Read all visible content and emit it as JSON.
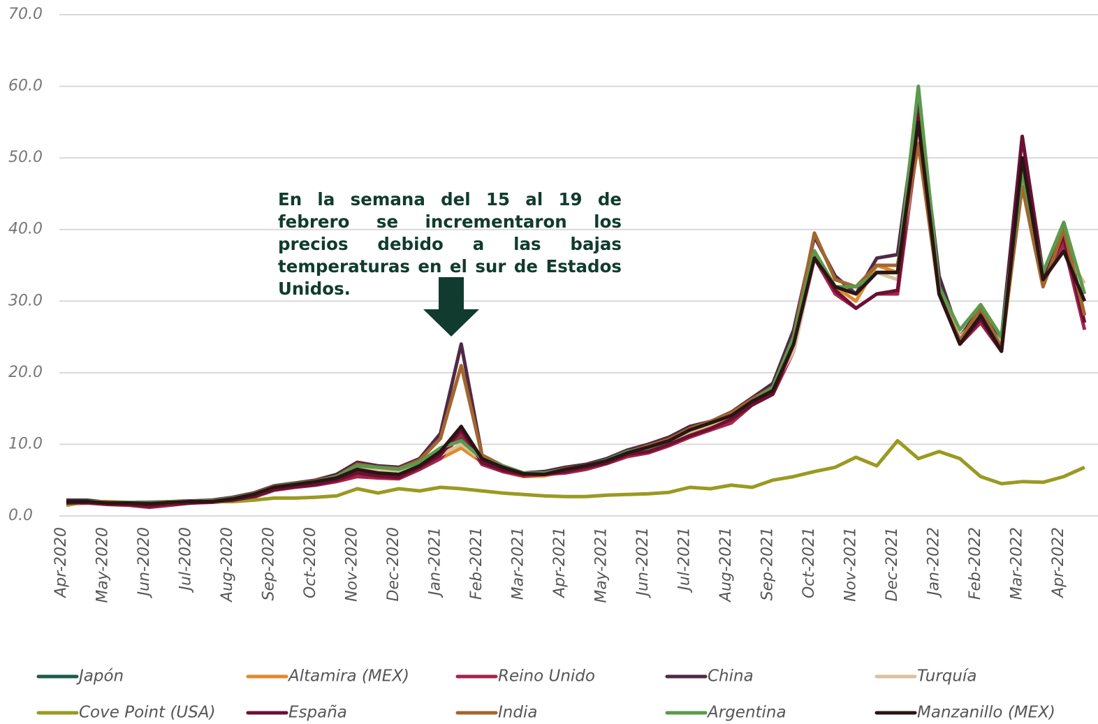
{
  "chart_data": {
    "type": "line",
    "annotation": "En la semana del 15 al 19 de febrero se incrementaron los precios debido a las bajas temperaturas en el sur de Estados Unidos.",
    "categories": [
      "Apr-2020",
      null,
      "May-2020",
      null,
      "Jun-2020",
      null,
      "Jul-2020",
      null,
      "Aug-2020",
      null,
      "Sep-2020",
      null,
      "Oct-2020",
      null,
      "Nov-2020",
      null,
      "Dec-2020",
      null,
      "Jan-2021",
      null,
      "Feb-2021",
      null,
      "Mar-2021",
      null,
      "Apr-2021",
      null,
      "May-2021",
      null,
      "Jun-2021",
      null,
      "Jul-2021",
      null,
      "Aug-2021",
      null,
      "Sep-2021",
      null,
      "Oct-2021",
      null,
      "Nov-2021",
      null,
      "Dec-2021",
      null,
      "Jan-2022",
      null,
      "Feb-2022",
      null,
      "Mar-2022",
      null,
      "Apr-2022",
      null
    ],
    "ylim": [
      0,
      70
    ],
    "yticks": [
      {
        "value": 0,
        "label": "0.0"
      },
      {
        "value": 10,
        "label": "10.0"
      },
      {
        "value": 20,
        "label": "20.0"
      },
      {
        "value": 30,
        "label": "30.0"
      },
      {
        "value": 40,
        "label": "40.0"
      },
      {
        "value": 50,
        "label": "50.0"
      },
      {
        "value": 60,
        "label": "60.0"
      },
      {
        "value": 70,
        "label": "70.0"
      }
    ],
    "grid": true,
    "series": [
      {
        "name": "Japón",
        "color": "#1e5c4a",
        "values": [
          2.2,
          2.2,
          1.9,
          1.9,
          1.8,
          2.0,
          2.0,
          2.1,
          2.4,
          3.0,
          4.0,
          4.4,
          4.8,
          5.2,
          6.5,
          6.0,
          6.0,
          7.0,
          9.0,
          11,
          7.8,
          6.5,
          5.8,
          5.8,
          6.3,
          6.8,
          7.5,
          8.8,
          9.3,
          10.3,
          11.8,
          12.8,
          13.8,
          15.8,
          17.8,
          24,
          36,
          32,
          31,
          34,
          34,
          55,
          32,
          25,
          28.5,
          24,
          48,
          33.5,
          37,
          30
        ]
      },
      {
        "name": "Altamira (MEX)",
        "color": "#e08a2c",
        "values": [
          1.8,
          1.9,
          1.7,
          1.8,
          1.6,
          1.8,
          1.9,
          2.0,
          2.3,
          2.8,
          3.8,
          4.2,
          4.6,
          5.0,
          6.5,
          6.0,
          5.8,
          6.5,
          8.0,
          9.5,
          7.5,
          6.2,
          5.5,
          5.6,
          6.2,
          6.8,
          7.5,
          8.6,
          9.2,
          10.2,
          11.5,
          12.5,
          13.6,
          15.5,
          17.5,
          23,
          37,
          32,
          30,
          35,
          34,
          52,
          31,
          24,
          28,
          23,
          47,
          32.5,
          38,
          27
        ]
      },
      {
        "name": "Reino Unido",
        "color": "#a6234a",
        "values": [
          1.7,
          1.8,
          1.6,
          1.5,
          1.2,
          1.5,
          1.8,
          1.9,
          2.1,
          2.6,
          3.6,
          4.0,
          4.3,
          4.8,
          5.5,
          5.3,
          5.2,
          6.5,
          8.0,
          11.5,
          7.2,
          6.2,
          5.6,
          5.8,
          6.0,
          6.5,
          7.3,
          8.3,
          8.8,
          9.8,
          11,
          12,
          13,
          15.5,
          17,
          23,
          36,
          31,
          29,
          31,
          31,
          53,
          31,
          24,
          27,
          23,
          50,
          33,
          38,
          26
        ]
      },
      {
        "name": "China",
        "color": "#4f2a45",
        "values": [
          2.2,
          2.1,
          1.9,
          1.9,
          1.9,
          2.0,
          2.1,
          2.2,
          2.6,
          3.2,
          4.2,
          4.6,
          5.0,
          5.8,
          7.5,
          7.0,
          6.8,
          8.0,
          11.5,
          24,
          8.5,
          7.0,
          6.0,
          6.2,
          6.8,
          7.2,
          8.0,
          9.2,
          10.0,
          11.0,
          12.5,
          13.2,
          14.5,
          16.5,
          18.5,
          26,
          39,
          33.5,
          31,
          36,
          36.5,
          58,
          33.5,
          25,
          29,
          25,
          53,
          34,
          40.5,
          28
        ]
      },
      {
        "name": "Turquía",
        "color": "#d9c29e",
        "values": [
          2.0,
          2.0,
          1.8,
          1.8,
          1.8,
          1.9,
          2.0,
          2.1,
          2.4,
          2.9,
          3.9,
          4.3,
          4.8,
          5.3,
          6.8,
          6.4,
          6.2,
          7.0,
          8.5,
          10,
          7.8,
          6.6,
          5.8,
          5.9,
          6.4,
          7.0,
          7.6,
          8.7,
          9.4,
          10.4,
          11.8,
          12.8,
          14,
          16,
          17.8,
          23,
          36,
          32,
          31,
          34,
          33,
          53,
          32,
          25,
          28,
          24,
          47,
          33,
          37,
          32.5
        ]
      },
      {
        "name": "Cove Point (USA)",
        "color": "#9a9a22",
        "values": [
          1.5,
          2.0,
          2.0,
          1.9,
          1.8,
          2.0,
          2.0,
          2.0,
          2.0,
          2.2,
          2.5,
          2.5,
          2.6,
          2.8,
          3.8,
          3.2,
          3.8,
          3.5,
          4.0,
          3.8,
          3.5,
          3.2,
          3.0,
          2.8,
          2.7,
          2.7,
          2.9,
          3.0,
          3.1,
          3.3,
          4.0,
          3.8,
          4.3,
          4.0,
          5.0,
          5.5,
          6.2,
          6.8,
          8.2,
          7.0,
          10.5,
          8.0,
          9.0,
          8.0,
          5.5,
          4.5,
          4.8,
          4.7,
          5.5,
          6.8
        ]
      },
      {
        "name": "España",
        "color": "#6b1033",
        "values": [
          1.8,
          1.9,
          1.7,
          1.6,
          1.4,
          1.7,
          1.8,
          2.0,
          2.2,
          2.7,
          3.7,
          4.1,
          4.4,
          5.0,
          6.0,
          5.6,
          5.4,
          6.8,
          8.5,
          12,
          7.5,
          6.4,
          5.8,
          5.9,
          6.2,
          6.8,
          7.4,
          8.6,
          9.0,
          10.0,
          11.2,
          12.2,
          13.5,
          15.5,
          17,
          24,
          36.5,
          31.5,
          29,
          31,
          31.5,
          56,
          31,
          24,
          27.5,
          23,
          53,
          33.5,
          39,
          27
        ]
      },
      {
        "name": "India",
        "color": "#a3662e",
        "values": [
          2.0,
          2.0,
          1.9,
          1.9,
          1.8,
          1.9,
          2.0,
          2.1,
          2.5,
          3.1,
          4.1,
          4.5,
          4.9,
          5.5,
          7.2,
          6.8,
          6.6,
          7.8,
          10.8,
          21,
          8.5,
          7.0,
          6.0,
          5.9,
          6.6,
          7.0,
          7.8,
          8.9,
          9.8,
          10.7,
          12.2,
          13.2,
          14.4,
          16.3,
          18,
          25,
          39.5,
          33,
          32,
          35,
          35,
          52,
          31,
          24.5,
          29,
          23.5,
          46,
          32,
          40,
          28
        ]
      },
      {
        "name": "Argentina",
        "color": "#5b9a4a",
        "values": [
          2.0,
          2.0,
          1.8,
          1.9,
          1.8,
          1.9,
          2.0,
          2.1,
          2.5,
          3.0,
          4.0,
          4.5,
          4.8,
          5.5,
          7.0,
          6.8,
          6.5,
          7.5,
          9.5,
          10.5,
          8.0,
          7.0,
          6.0,
          6.0,
          6.5,
          7.0,
          7.8,
          9.0,
          9.5,
          10.5,
          12,
          13,
          14,
          16,
          18,
          25,
          37,
          32,
          32,
          34,
          34,
          60,
          32,
          26,
          29.5,
          25,
          48,
          34,
          41,
          31
        ]
      },
      {
        "name": "Manzanillo (MEX)",
        "color": "#2a1414",
        "values": [
          2.0,
          2.0,
          1.8,
          1.8,
          1.7,
          1.9,
          2.0,
          2.0,
          2.4,
          3.0,
          4.0,
          4.4,
          4.8,
          5.3,
          6.5,
          6.0,
          5.8,
          7.0,
          9.0,
          12.5,
          8.0,
          6.8,
          5.9,
          5.8,
          6.5,
          7.0,
          7.7,
          8.8,
          9.6,
          10.5,
          12,
          13,
          14,
          16,
          17.5,
          24,
          36,
          32,
          31,
          34,
          34,
          55,
          31,
          24,
          28,
          23,
          50,
          33,
          37,
          30
        ]
      }
    ]
  }
}
